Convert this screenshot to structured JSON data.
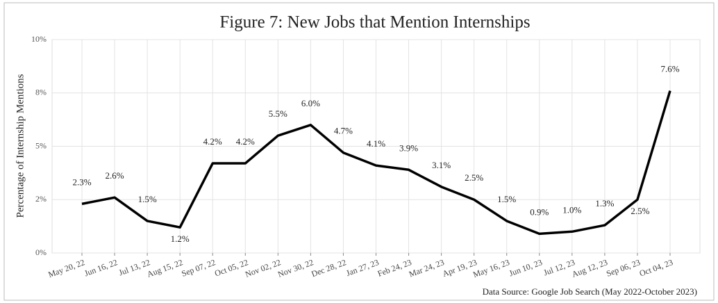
{
  "chart_data": {
    "type": "line",
    "title": "Figure 7: New Jobs that Mention Internships",
    "y_label": "Percentage of Internship Mentions",
    "source": "Data Source: Google Job Search (May 2022-October 2023)",
    "categories": [
      "May 20, 22",
      "Jun 16, 22",
      "Jul 13, 22",
      "Aug 15, 22",
      "Sep 07, 22",
      "Oct 05, 22",
      "Nov 02, 22",
      "Nov 30, 22",
      "Dec 28, 22",
      "Jan 27, 23",
      "Feb 24, 23",
      "Mar 24, 23",
      "Apr 19, 23",
      "May 16, 23",
      "Jun 10, 23",
      "Jul 12, 23",
      "Aug 12, 23",
      "Sep 06, 23",
      "Oct 04, 23"
    ],
    "series": [
      {
        "name": "Internship mentions",
        "color": "#000000",
        "values": [
          2.3,
          2.6,
          1.5,
          1.2,
          4.2,
          4.2,
          5.5,
          6.0,
          4.7,
          4.1,
          3.9,
          3.1,
          2.5,
          1.5,
          0.9,
          1.0,
          1.3,
          2.5,
          7.6
        ],
        "value_labels": [
          "2.3%",
          "2.6%",
          "1.5%",
          "1.2%",
          "4.2%",
          "4.2%",
          "5.5%",
          "6.0%",
          "4.7%",
          "4.1%",
          "3.9%",
          "3.1%",
          "2.5%",
          "1.5%",
          "0.9%",
          "1.0%",
          "1.3%",
          "2.5%",
          "7.6%"
        ]
      }
    ],
    "ylim": [
      0,
      10
    ],
    "yticks": [
      {
        "value": 0,
        "label": "0%"
      },
      {
        "value": 2.5,
        "label": "2%"
      },
      {
        "value": 5,
        "label": "5%"
      },
      {
        "value": 7.5,
        "label": "8%"
      },
      {
        "value": 10,
        "label": "10%"
      }
    ],
    "grid": true
  }
}
